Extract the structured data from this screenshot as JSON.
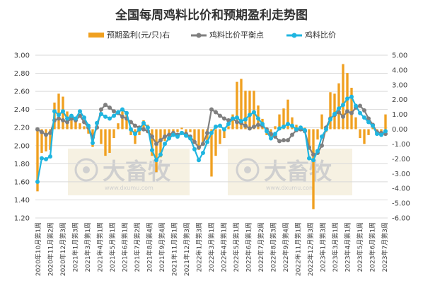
{
  "title": "全国每周鸡料比价和预期盈利走势图",
  "legend": {
    "profit": "预期盈利(元/只)右",
    "breakeven": "鸡料比价平衡点",
    "ratio": "鸡料比价"
  },
  "watermark": {
    "brand": "大畜牧",
    "url": "www.dxumu.com"
  },
  "colors": {
    "bar": "#f0a020",
    "breakeven": "#7f7f7f",
    "ratio": "#1fb5e0",
    "watermark_bg": "#f3ecd8"
  },
  "chart_data": {
    "type": "line",
    "title": "全国每周鸡料比价和预期盈利走势图",
    "left_axis": {
      "min": 1.2,
      "max": 3.0,
      "step": 0.2,
      "ticks": [
        "1.20",
        "1.40",
        "1.60",
        "1.80",
        "2.00",
        "2.20",
        "2.40",
        "2.60",
        "2.80",
        "3.00"
      ]
    },
    "right_axis": {
      "min": -6,
      "max": 5,
      "step": 1,
      "ticks": [
        "-6.00",
        "-5.00",
        "-4.00",
        "-3.00",
        "-2.00",
        "-1.00",
        "0.00",
        "1.00",
        "2.00",
        "3.00",
        "4.00",
        "5.00"
      ]
    },
    "x_labels": [
      "2020年10月第1周",
      "2020年11月第2周",
      "2020年12月第3周",
      "2021年1月第3周",
      "2021年3月第1周",
      "2021年4月第1周",
      "2021年5月第1周",
      "2021年6月第1周",
      "2021年7月第2周",
      "2021年8月第4周",
      "2021年9月第4周",
      "2021年11月第1周",
      "2021年12月第3周",
      "2022年1月第3周",
      "2022年3月第1周",
      "2022年4月第1周",
      "2022年5月第1周",
      "2022年6月第1周",
      "2022年7月第2周",
      "2022年8月第3周",
      "2022年9月第4周",
      "2022年11月第1周",
      "2022年12月第3周",
      "2023年1月第3周",
      "2023年3月第1周",
      "2023年4月第1周",
      "2023年5月第1周",
      "2023年6月第1周",
      "2023年7月第3周"
    ],
    "series": [
      {
        "name": "鸡料比价",
        "axis": "left",
        "values": [
          1.6,
          1.86,
          1.85,
          1.88,
          2.38,
          2.34,
          2.38,
          2.3,
          2.33,
          2.3,
          2.38,
          2.31,
          2.22,
          2.03,
          2.25,
          2.35,
          2.32,
          2.3,
          2.33,
          2.37,
          2.4,
          2.36,
          2.18,
          2.13,
          2.18,
          2.25,
          2.2,
          1.95,
          1.84,
          1.9,
          2.02,
          2.08,
          2.12,
          2.1,
          2.14,
          2.11,
          2.08,
          1.96,
          1.84,
          1.92,
          2.04,
          2.14,
          2.21,
          2.22,
          2.18,
          2.24,
          2.3,
          2.31,
          2.27,
          2.29,
          2.34,
          2.37,
          2.3,
          2.24,
          2.16,
          2.08,
          2.13,
          2.19,
          2.21,
          2.24,
          2.22,
          2.18,
          2.2,
          2.17,
          1.86,
          1.84,
          1.94,
          2.1,
          2.18,
          2.29,
          2.35,
          2.41,
          2.45,
          2.52,
          2.54,
          2.44,
          2.36,
          2.31,
          2.26,
          2.22,
          2.13,
          2.12,
          2.16
        ]
      },
      {
        "name": "鸡料比价平衡点",
        "axis": "left",
        "values": [
          2.18,
          2.15,
          2.12,
          2.14,
          2.28,
          2.3,
          2.28,
          2.26,
          2.3,
          2.28,
          2.33,
          2.26,
          2.2,
          2.09,
          2.2,
          2.4,
          2.45,
          2.42,
          2.38,
          2.36,
          2.32,
          2.3,
          2.26,
          2.22,
          2.2,
          2.18,
          2.16,
          2.1,
          2.02,
          2.06,
          2.1,
          2.12,
          2.14,
          2.12,
          2.14,
          2.13,
          2.1,
          2.04,
          1.98,
          2.02,
          2.14,
          2.4,
          2.37,
          2.33,
          2.3,
          2.28,
          2.3,
          2.26,
          2.25,
          2.22,
          2.19,
          2.21,
          2.23,
          2.22,
          2.18,
          2.13,
          2.1,
          2.05,
          2.06,
          2.06,
          2.12,
          2.17,
          2.18,
          2.16,
          1.98,
          1.9,
          1.92,
          2.0,
          2.2,
          2.3,
          2.34,
          2.37,
          2.32,
          2.38,
          2.36,
          2.42,
          2.44,
          2.39,
          2.3,
          2.23,
          2.15,
          2.14,
          2.13
        ]
      },
      {
        "name": "预期盈利(元/只)右",
        "axis": "right",
        "type": "bar",
        "values": [
          -4.2,
          -1.6,
          -1.5,
          -1.4,
          1.8,
          2.4,
          2.2,
          1.2,
          0.8,
          0.6,
          0.4,
          0.2,
          -0.3,
          -1.2,
          0.2,
          -1.0,
          -1.8,
          -1.6,
          -0.6,
          0.4,
          1.2,
          1.1,
          -0.4,
          -1.0,
          -0.4,
          0.6,
          0.3,
          -1.8,
          -2.9,
          -1.9,
          -0.8,
          -0.4,
          -0.2,
          -0.2,
          0.1,
          -0.2,
          -0.2,
          -1.0,
          -1.4,
          -1.1,
          -1.0,
          -3.2,
          -1.8,
          -1.0,
          -0.6,
          0.2,
          1.0,
          3.2,
          3.4,
          2.6,
          2.6,
          2.6,
          1.6,
          0.7,
          -0.4,
          -0.6,
          0.2,
          1.0,
          1.4,
          2.0,
          0.8,
          0.3,
          0.1,
          0.1,
          -1.4,
          -5.4,
          -0.7,
          1.0,
          -0.2,
          2.5,
          2.4,
          3.1,
          4.4,
          3.8,
          2.8,
          0.8,
          -0.6,
          -1.0,
          -0.4,
          0.2,
          -0.2,
          -0.4,
          1.0
        ]
      }
    ],
    "legend_position": "top",
    "grid": true
  }
}
